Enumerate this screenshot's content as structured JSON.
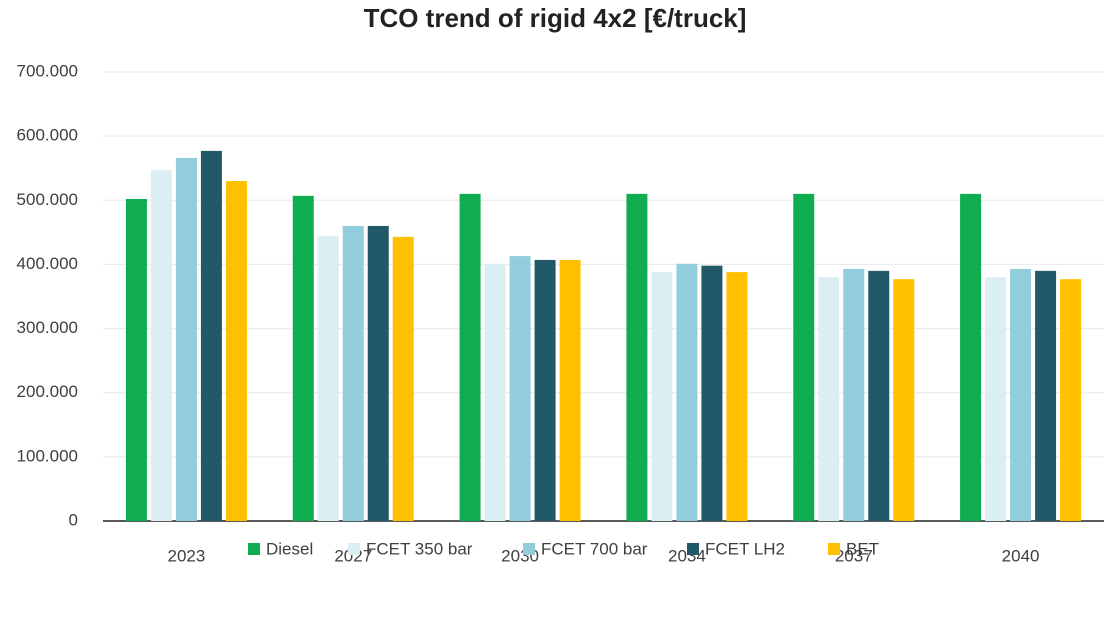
{
  "chart_data": {
    "type": "bar",
    "title": "TCO trend of rigid 4x2 [€/truck]",
    "categories": [
      "2023",
      "2027",
      "2030",
      "2034",
      "2037",
      "2040"
    ],
    "series": [
      {
        "name": "Diesel",
        "color": "#0fad4f",
        "values": [
          502000,
          507000,
          510000,
          510000,
          510000,
          510000
        ]
      },
      {
        "name": "FCET 350 bar",
        "color": "#daeef3",
        "values": [
          547000,
          444000,
          401000,
          388000,
          380000,
          380000
        ]
      },
      {
        "name": "FCET 700 bar",
        "color": "#92cddc",
        "values": [
          566000,
          460000,
          413000,
          401000,
          393000,
          393000
        ]
      },
      {
        "name": "FCET LH2",
        "color": "#215968",
        "values": [
          577000,
          460000,
          407000,
          398000,
          390000,
          390000
        ]
      },
      {
        "name": "BET",
        "color": "#ffc000",
        "values": [
          530000,
          443000,
          407000,
          388000,
          377000,
          377000
        ]
      }
    ],
    "ylim": [
      0,
      700000
    ],
    "yticks": [
      0,
      {
        "value": 100000,
        "label": "100.000"
      },
      {
        "value": 200000,
        "label": "200.000"
      },
      {
        "value": 300000,
        "label": "300.000"
      },
      {
        "value": 400000,
        "label": "400.000"
      },
      {
        "value": 500000,
        "label": "500.000"
      },
      {
        "value": 600000,
        "label": "600.000"
      },
      {
        "value": 700000,
        "label": "700.000"
      }
    ],
    "grid": true,
    "legend": "bottom"
  }
}
